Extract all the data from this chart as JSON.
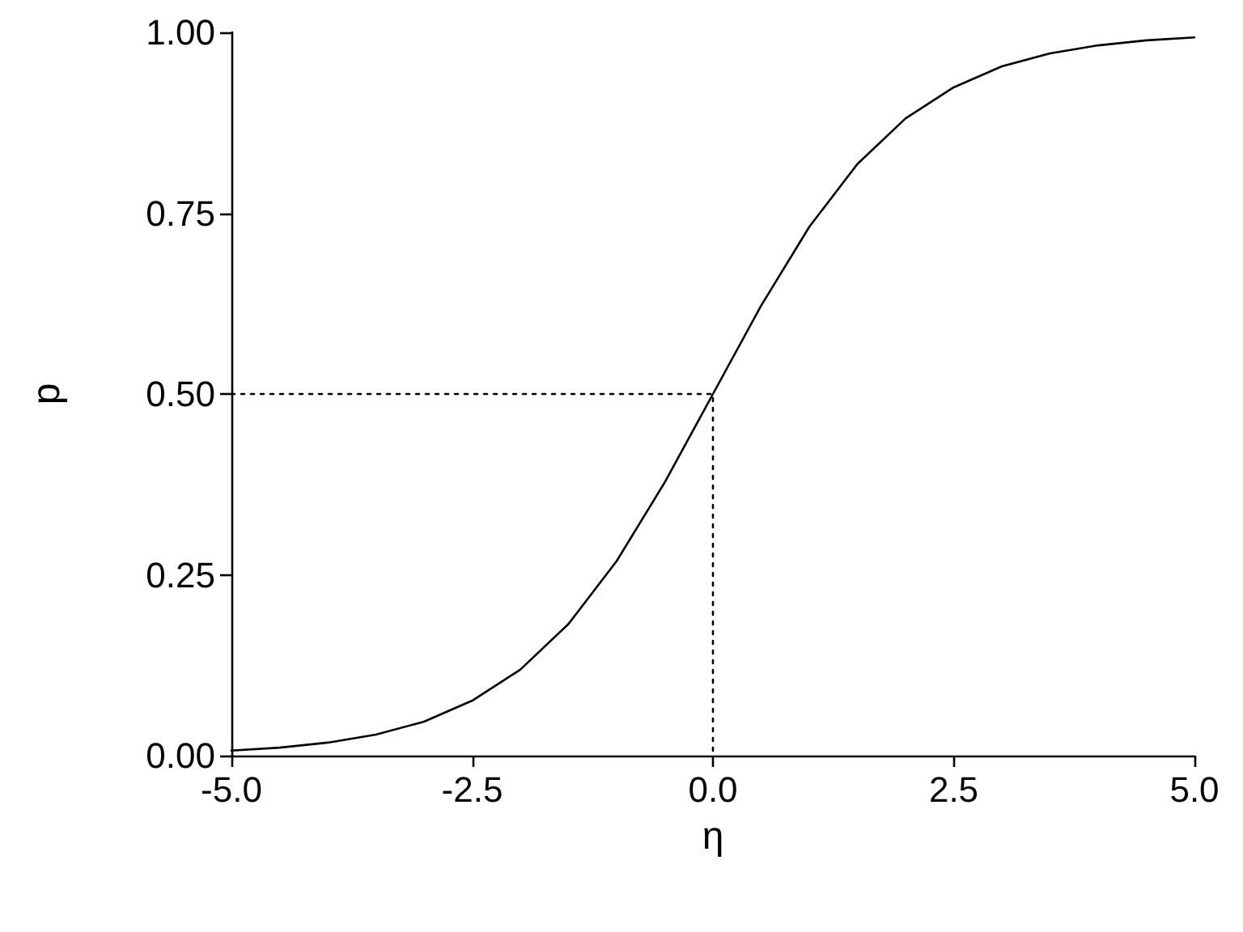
{
  "chart_data": {
    "type": "line",
    "xlabel": "η",
    "ylabel": "p",
    "xlim": [
      -5,
      5
    ],
    "ylim": [
      0,
      1
    ],
    "xticks": [
      {
        "value": -5,
        "label": "-5.0"
      },
      {
        "value": -2.5,
        "label": "-2.5"
      },
      {
        "value": 0,
        "label": "0.0"
      },
      {
        "value": 2.5,
        "label": "2.5"
      },
      {
        "value": 5,
        "label": "5.0"
      }
    ],
    "yticks": [
      {
        "value": 0,
        "label": "0.00"
      },
      {
        "value": 0.25,
        "label": "0.25"
      },
      {
        "value": 0.5,
        "label": "0.50"
      },
      {
        "value": 0.75,
        "label": "0.75"
      },
      {
        "value": 1,
        "label": "1.00"
      }
    ],
    "grid": false,
    "marker": "none",
    "series": [
      {
        "color": "#000000",
        "line_style": "solid",
        "x": [
          -5,
          -4.5,
          -4,
          -3.5,
          -3,
          -2.5,
          -2,
          -1.5,
          -1,
          -0.5,
          0,
          0.5,
          1,
          1.5,
          2,
          2.5,
          3,
          3.5,
          4,
          4.5,
          5
        ],
        "values": [
          0.007,
          0.011,
          0.018,
          0.029,
          0.047,
          0.076,
          0.119,
          0.182,
          0.269,
          0.378,
          0.5,
          0.622,
          0.731,
          0.818,
          0.881,
          0.924,
          0.953,
          0.971,
          0.982,
          0.989,
          0.993
        ]
      },
      {
        "color": "#000000",
        "line_style": "dotted",
        "x": [
          -5,
          0,
          0
        ],
        "values": [
          0.5,
          0.5,
          0
        ]
      }
    ]
  }
}
